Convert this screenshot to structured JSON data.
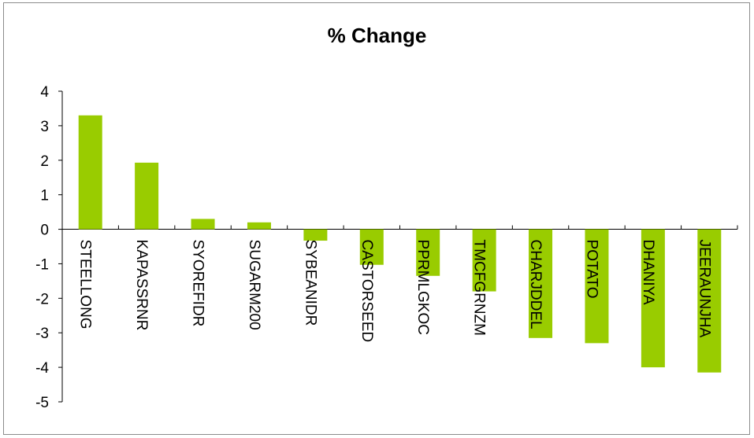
{
  "chart_data": {
    "type": "bar",
    "title": "% Change",
    "xlabel": "",
    "ylabel": "",
    "categories": [
      "STEELLONG",
      "KAPASSRNR",
      "SYOREFIDR",
      "SUGARM200",
      "SYBEANIDR",
      "CASTORSEED",
      "PPRMLGKOC",
      "TMCFGRNZM",
      "CHARJDDEL",
      "POTATO",
      "DHANIYA",
      "JEERAUNJHA"
    ],
    "values": [
      3.3,
      1.93,
      0.3,
      0.2,
      -0.33,
      -1.03,
      -1.35,
      -1.8,
      -3.15,
      -3.3,
      -4.0,
      -4.15
    ],
    "ylim": [
      -5,
      4
    ],
    "yticks": [
      "4",
      "3",
      "2",
      "1",
      "0",
      "-1",
      "-2",
      "-3",
      "-4",
      "-5"
    ],
    "bar_color": "#99cc00",
    "grid": false,
    "legend": "none"
  }
}
